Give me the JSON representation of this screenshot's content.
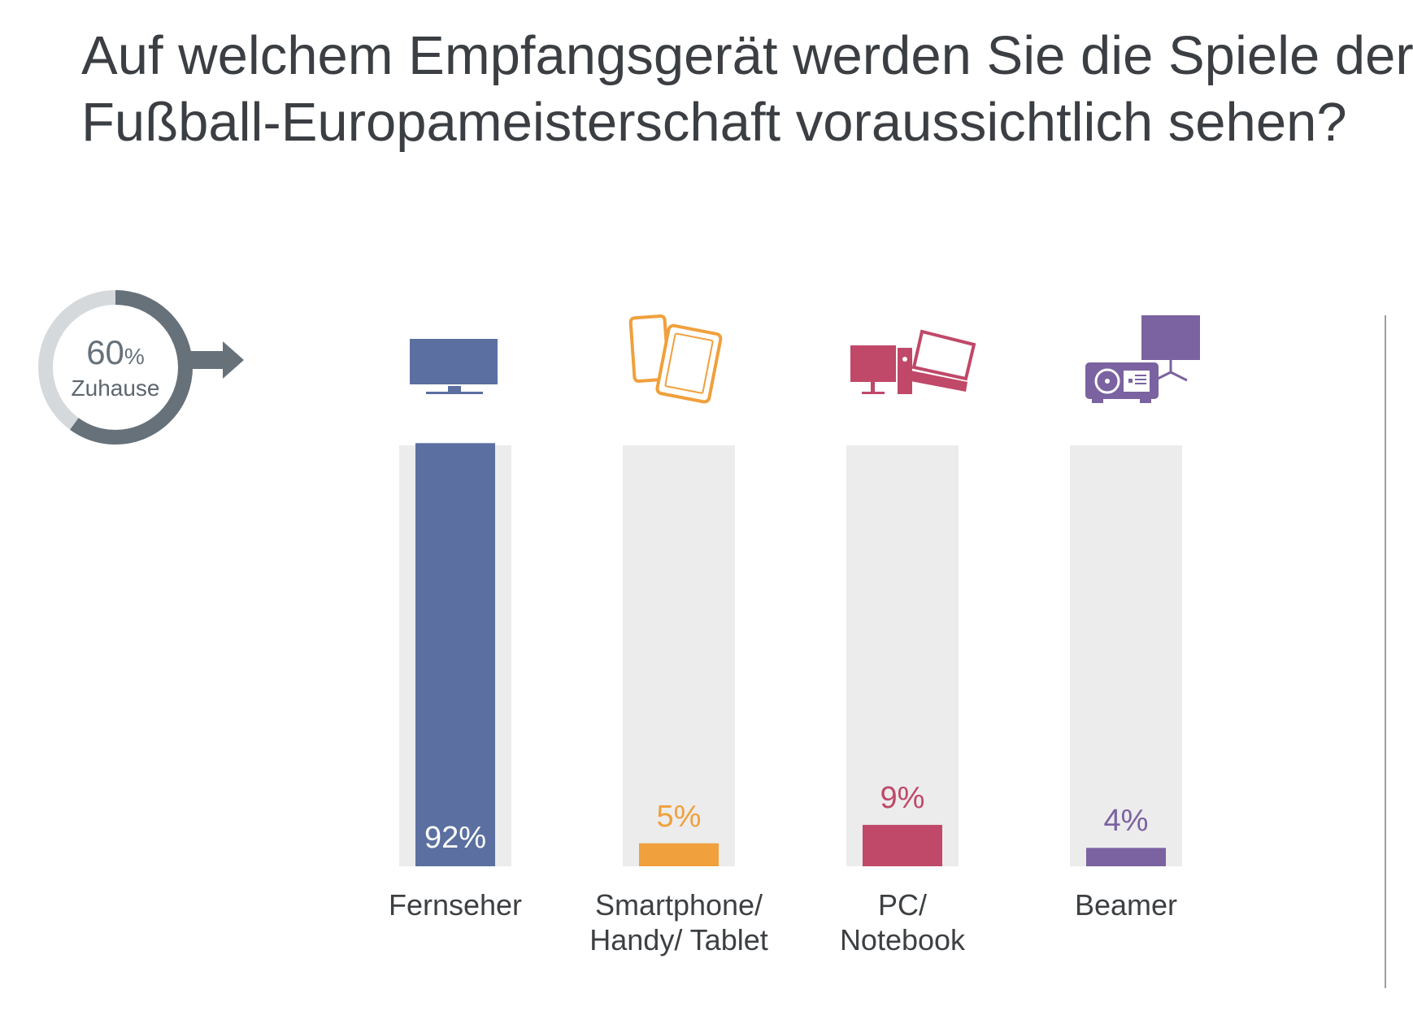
{
  "title": {
    "line1": "Auf welchem Empfangsgerät werden Sie die Spiele der",
    "line2": "Fußball-Europameisterschaft voraussichtlich sehen?"
  },
  "donut": {
    "value": "60",
    "unit": "%",
    "label": "Zuhause",
    "fraction": 0.6,
    "colors": {
      "filled": "#66717a",
      "track": "#d6d9dc"
    }
  },
  "chart_data": {
    "type": "bar",
    "categories": [
      "Fernseher",
      "Smartphone/ Handy/ Tablet",
      "PC/ Notebook",
      "Beamer"
    ],
    "category_lines": [
      [
        "Fernseher"
      ],
      [
        "Smartphone/",
        "Handy/ Tablet"
      ],
      [
        "PC/",
        "Notebook"
      ],
      [
        "Beamer"
      ]
    ],
    "values": [
      92,
      5,
      9,
      4
    ],
    "value_labels": [
      "92%",
      "5%",
      "9%",
      "4%"
    ],
    "ylim": [
      0,
      100
    ],
    "colors": [
      "#5b6fa0",
      "#f0a03c",
      "#c04868",
      "#7b62a0"
    ],
    "track_color": "#ececec",
    "icons": [
      "tv-icon",
      "smartphone-tablet-icon",
      "pc-notebook-icon",
      "beamer-icon"
    ],
    "grid": false,
    "title": "",
    "xlabel": "",
    "ylabel": ""
  }
}
